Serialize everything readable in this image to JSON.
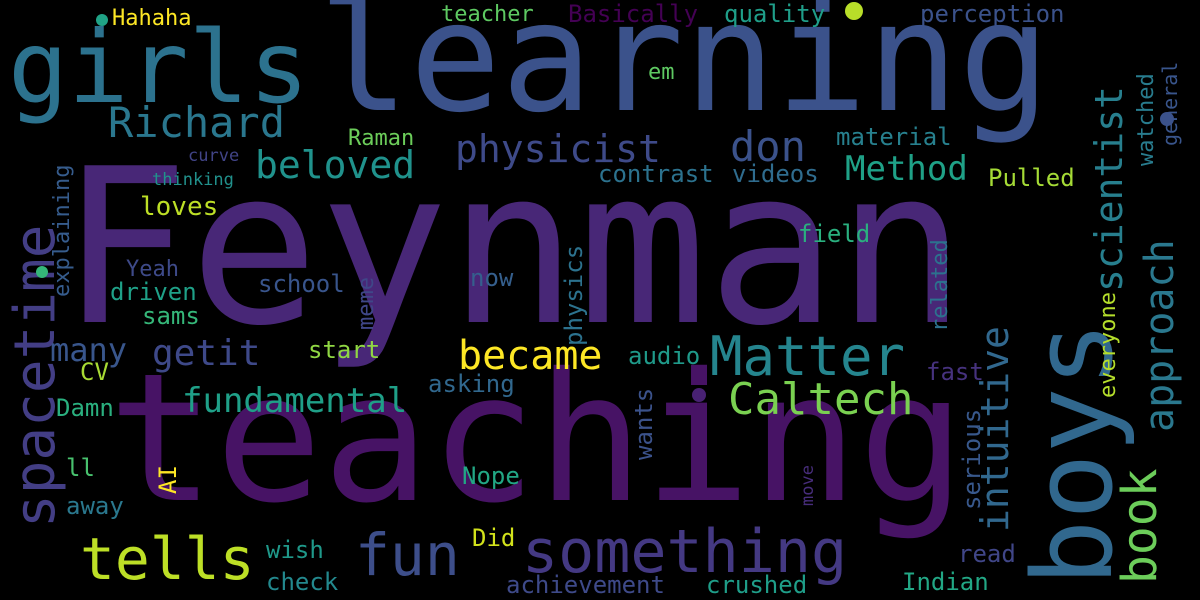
{
  "words": [
    {
      "text": "Feynman",
      "color": "#482777"
    },
    {
      "text": "teaching",
      "color": "#471365"
    },
    {
      "text": "learning",
      "color": "#3b528b"
    },
    {
      "text": "girls",
      "color": "#2c728e"
    },
    {
      "text": "boys",
      "color": "#31688e"
    },
    {
      "text": "spacetime",
      "color": "#433e85"
    },
    {
      "text": "something",
      "color": "#443983"
    },
    {
      "text": "Matter",
      "color": "#25858e"
    },
    {
      "text": "tells",
      "color": "#bddf26"
    },
    {
      "text": "fun",
      "color": "#3d4e8a"
    },
    {
      "text": "book",
      "color": "#6ccd5a"
    },
    {
      "text": "approach",
      "color": "#2a788e"
    },
    {
      "text": "scientist",
      "color": "#277f8e"
    },
    {
      "text": "intuitive",
      "color": "#31688e"
    },
    {
      "text": "Richard",
      "color": "#2a778e"
    },
    {
      "text": "physicist",
      "color": "#3e4a89"
    },
    {
      "text": "don",
      "color": "#3b528b"
    },
    {
      "text": "beloved",
      "color": "#20928c"
    },
    {
      "text": "became",
      "color": "#fde725"
    },
    {
      "text": "Caltech",
      "color": "#7ad151"
    },
    {
      "text": "getit",
      "color": "#3e4989"
    },
    {
      "text": "fundamental",
      "color": "#1fa088"
    },
    {
      "text": "many",
      "color": "#39568c"
    },
    {
      "text": "Method",
      "color": "#1fa187"
    },
    {
      "text": "Hahaha",
      "color": "#fde725"
    },
    {
      "text": "teacher",
      "color": "#5ec962"
    },
    {
      "text": "Basically",
      "color": "#440154"
    },
    {
      "text": "quality",
      "color": "#1f9e89"
    },
    {
      "text": "perception",
      "color": "#3b528b"
    },
    {
      "text": "em",
      "color": "#5ec962"
    },
    {
      "text": "Raman",
      "color": "#6ccd5a"
    },
    {
      "text": "material",
      "color": "#27808e"
    },
    {
      "text": "curve",
      "color": "#414487"
    },
    {
      "text": "thinking",
      "color": "#21918c"
    },
    {
      "text": "contrast",
      "color": "#2c728e"
    },
    {
      "text": "videos",
      "color": "#2f6c8e"
    },
    {
      "text": "Pulled",
      "color": "#a5db36"
    },
    {
      "text": "loves",
      "color": "#bddf26"
    },
    {
      "text": "explaining",
      "color": "#365c8d"
    },
    {
      "text": "field",
      "color": "#2ab07f"
    },
    {
      "text": "Yeah",
      "color": "#3e4a89"
    },
    {
      "text": "driven",
      "color": "#1fa188"
    },
    {
      "text": "school",
      "color": "#39558c"
    },
    {
      "text": "now",
      "color": "#355f8d"
    },
    {
      "text": "meme",
      "color": "#3f4788"
    },
    {
      "text": "sams",
      "color": "#35b779"
    },
    {
      "text": "physics",
      "color": "#2c728e"
    },
    {
      "text": "related",
      "color": "#2c728e"
    },
    {
      "text": "everyone",
      "color": "#b5de2b"
    },
    {
      "text": "watched",
      "color": "#287c8e"
    },
    {
      "text": "general",
      "color": "#39558c"
    },
    {
      "text": "start",
      "color": "#90d743"
    },
    {
      "text": "audio",
      "color": "#1f9a8a"
    },
    {
      "text": "CV",
      "color": "#a8db34"
    },
    {
      "text": "asking",
      "color": "#31688e"
    },
    {
      "text": "fast",
      "color": "#46327e"
    },
    {
      "text": "Damn",
      "color": "#2ab07f"
    },
    {
      "text": "serious",
      "color": "#38588c"
    },
    {
      "text": "wants",
      "color": "#3b528b"
    },
    {
      "text": "AI",
      "color": "#fde725"
    },
    {
      "text": "ll",
      "color": "#48c16e"
    },
    {
      "text": "Nope",
      "color": "#22a785"
    },
    {
      "text": "away",
      "color": "#2a788e"
    },
    {
      "text": "move",
      "color": "#472d7b"
    },
    {
      "text": "Did",
      "color": "#d2e21b"
    },
    {
      "text": "wish",
      "color": "#1f998a"
    },
    {
      "text": "read",
      "color": "#404688"
    },
    {
      "text": "check",
      "color": "#23898e"
    },
    {
      "text": "Indian",
      "color": "#22a785"
    },
    {
      "text": "achievement",
      "color": "#3e4a89"
    },
    {
      "text": "crushed",
      "color": "#1f9e89"
    }
  ],
  "dots": [
    {
      "color": "#20a386"
    },
    {
      "color": "#b8de29"
    },
    {
      "color": "#3b528b"
    },
    {
      "color": "#482173"
    },
    {
      "color": "#35b779"
    }
  ]
}
